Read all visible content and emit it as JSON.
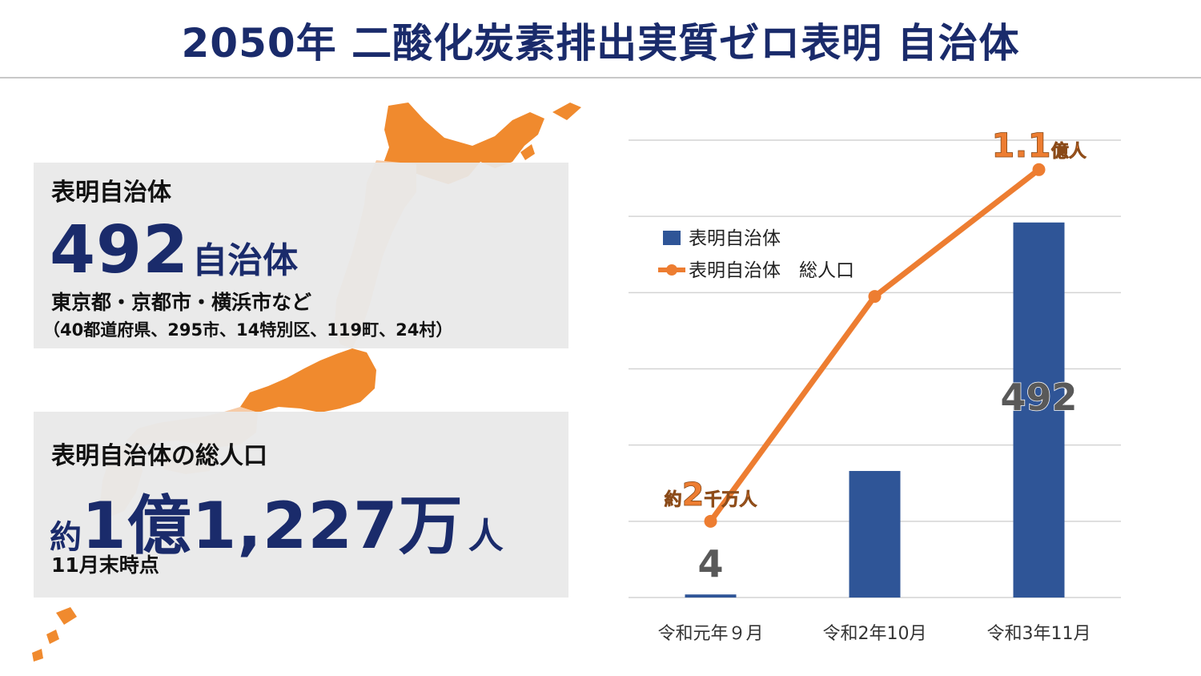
{
  "title": "2050年 二酸化炭素排出実質ゼロ表明 自治体",
  "count_panel": {
    "heading": "表明自治体",
    "number": "492",
    "unit": "自治体",
    "examples": "東京都・京都市・横浜市など",
    "breakdown": "（40都道府県、295市、14特別区、119町、24村）"
  },
  "population_panel": {
    "heading": "表明自治体の総人口",
    "prefix": "約",
    "number": "1億1,227万",
    "unit": "人",
    "as_of": "11月末時点"
  },
  "colors": {
    "title": "#1a2b6b",
    "bar": "#2f5597",
    "line": "#ed7d31",
    "map_highlight": "#f08a2e",
    "map_base": "#f6cba7",
    "panel_bg": "#e8e8e8"
  },
  "chart_data": {
    "type": "bar+line",
    "categories": [
      "令和元年９月",
      "令和2年10月",
      "令和3年11月"
    ],
    "series": [
      {
        "name": "表明自治体",
        "type": "bar",
        "values": [
          4,
          166,
          492
        ],
        "data_labels": [
          "4",
          "",
          "492"
        ]
      },
      {
        "name": "表明自治体　総人口",
        "type": "line",
        "values": [
          20000000,
          79000000,
          112270000
        ],
        "annotations": [
          {
            "index": 0,
            "prefix": "約",
            "big": "2",
            "suffix": "千万人"
          },
          {
            "index": 2,
            "prefix": "",
            "big": "1.1",
            "suffix": "億人"
          }
        ]
      }
    ],
    "bar_axis_range": [
      0,
      600
    ],
    "line_axis_range": [
      0,
      120000000
    ],
    "gridlines": true,
    "legend_position": "top-left"
  }
}
